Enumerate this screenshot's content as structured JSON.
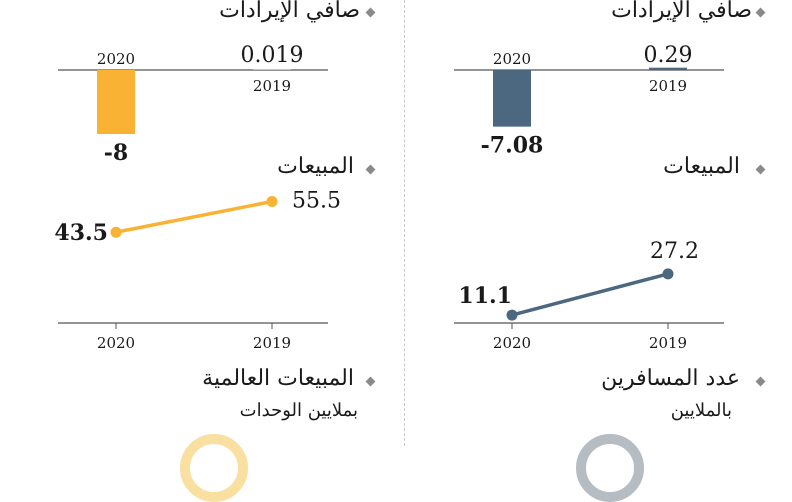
{
  "colors": {
    "global_accent": "#F9B234",
    "local_accent": "#4C6780",
    "axis": "#555555",
    "bullet": "#8A8A8A"
  },
  "panels": {
    "left": {
      "revenue": {
        "heading": "صافي الإيرادات"
      },
      "sales": {
        "heading": "المبيعات"
      },
      "footer": {
        "heading": "المبيعات العالمية",
        "subheading": "بملايين الوحدات"
      }
    },
    "right": {
      "revenue": {
        "heading": "صافي الإيرادات"
      },
      "sales": {
        "heading": "المبيعات"
      },
      "footer": {
        "heading": "عدد المسافرين",
        "subheading": "بالملايين"
      }
    }
  },
  "chart_data": [
    {
      "id": "left-revenue",
      "type": "bar",
      "categories": [
        "2020",
        "2019"
      ],
      "values": [
        -8,
        0.019
      ],
      "value_labels": [
        "-8",
        "0.019"
      ],
      "ylim": [
        -8,
        0.3
      ]
    },
    {
      "id": "left-sales",
      "type": "line",
      "x": [
        "2020",
        "2019"
      ],
      "values": [
        43.5,
        55.5
      ],
      "value_labels": [
        "43.5",
        "55.5"
      ],
      "ylim": [
        8,
        60
      ]
    },
    {
      "id": "right-revenue",
      "type": "bar",
      "categories": [
        "2020",
        "2019"
      ],
      "values": [
        -7.08,
        0.29
      ],
      "value_labels": [
        "-7.08",
        "0.29"
      ],
      "ylim": [
        -8,
        0.3
      ]
    },
    {
      "id": "right-sales",
      "type": "line",
      "x": [
        "2020",
        "2019"
      ],
      "values": [
        11.1,
        27.2
      ],
      "value_labels": [
        "11.1",
        "27.2"
      ],
      "ylim": [
        8,
        60
      ]
    }
  ]
}
